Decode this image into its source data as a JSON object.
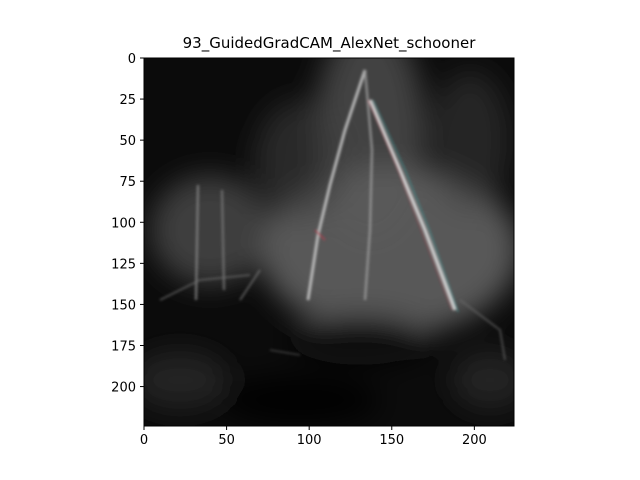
{
  "chart_data": {
    "type": "heatmap",
    "title": "93_GuidedGradCAM_AlexNet_schooner",
    "xlabel": "",
    "ylabel": "",
    "xlim": [
      0,
      224
    ],
    "ylim": [
      224,
      0
    ],
    "x_ticks": [
      0,
      50,
      100,
      150,
      200
    ],
    "y_ticks": [
      0,
      25,
      50,
      75,
      100,
      125,
      150,
      175,
      200
    ],
    "x_tick_labels": [
      "0",
      "50",
      "100",
      "150",
      "200"
    ],
    "y_tick_labels": [
      "0",
      "25",
      "50",
      "75",
      "100",
      "125",
      "150",
      "175",
      "200"
    ],
    "grid": false,
    "colormap": "grayscale",
    "colors": {
      "background_dark": "#0a0a0a",
      "haze_gray": "#6e6e6e",
      "edge_highlight": "#d8d8d8",
      "edge_red": "#b04050",
      "edge_teal": "#40a0a0"
    }
  }
}
